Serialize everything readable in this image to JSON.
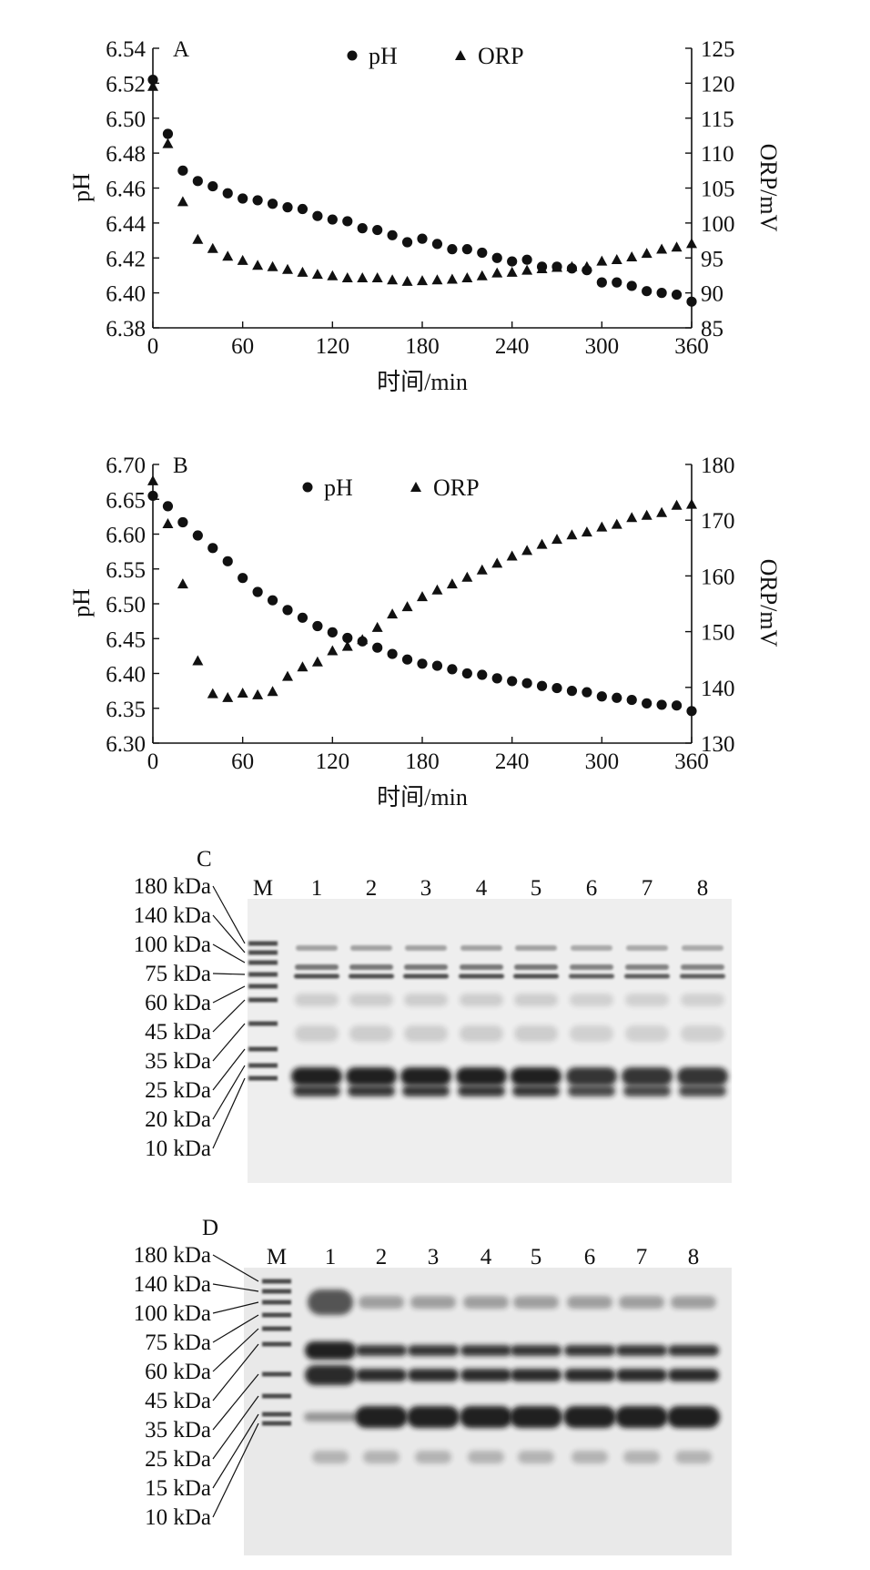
{
  "chart_data": [
    {
      "type": "scatter",
      "panel_label": "A",
      "xlabel": "时间/min",
      "ylabel_left": "pH",
      "ylabel_right": "ORP/mV",
      "x_ticks": [
        "0",
        "60",
        "120",
        "180",
        "240",
        "300",
        "360"
      ],
      "y_left_ticks": [
        "6.38",
        "6.40",
        "6.42",
        "6.44",
        "6.46",
        "6.48",
        "6.50",
        "6.52",
        "6.54"
      ],
      "y_right_ticks": [
        "85",
        "90",
        "95",
        "100",
        "105",
        "110",
        "115",
        "120",
        "125"
      ],
      "xlim": [
        0,
        360
      ],
      "ylim_left": [
        6.38,
        6.54
      ],
      "ylim_right": [
        85,
        125
      ],
      "grid": false,
      "legend_position": "top-center",
      "series": [
        {
          "name": "pH",
          "axis": "left",
          "marker": "circle",
          "x": [
            0,
            10,
            20,
            30,
            40,
            50,
            60,
            70,
            80,
            90,
            100,
            110,
            120,
            130,
            140,
            150,
            160,
            170,
            180,
            190,
            200,
            210,
            220,
            230,
            240,
            250,
            260,
            270,
            280,
            290,
            300,
            310,
            320,
            330,
            340,
            350,
            360
          ],
          "y": [
            6.522,
            6.491,
            6.47,
            6.464,
            6.461,
            6.457,
            6.454,
            6.453,
            6.451,
            6.449,
            6.448,
            6.444,
            6.442,
            6.441,
            6.437,
            6.436,
            6.433,
            6.429,
            6.431,
            6.428,
            6.425,
            6.425,
            6.423,
            6.42,
            6.418,
            6.419,
            6.415,
            6.415,
            6.414,
            6.413,
            6.406,
            6.406,
            6.404,
            6.401,
            6.4,
            6.399,
            6.395
          ]
        },
        {
          "name": "ORP",
          "axis": "right",
          "marker": "triangle",
          "x": [
            0,
            10,
            20,
            30,
            40,
            50,
            60,
            70,
            80,
            90,
            100,
            110,
            120,
            130,
            140,
            150,
            160,
            170,
            180,
            190,
            200,
            210,
            220,
            230,
            240,
            250,
            260,
            270,
            280,
            290,
            300,
            310,
            320,
            330,
            340,
            350,
            360
          ],
          "y": [
            119.5,
            111.3,
            103.0,
            97.6,
            96.3,
            95.2,
            94.6,
            93.9,
            93.7,
            93.3,
            92.9,
            92.6,
            92.4,
            92.1,
            92.1,
            92.1,
            91.8,
            91.6,
            91.7,
            91.8,
            91.9,
            92.1,
            92.4,
            92.8,
            92.9,
            93.2,
            93.4,
            93.6,
            93.7,
            93.7,
            94.5,
            94.7,
            95.1,
            95.6,
            96.2,
            96.5,
            97.0
          ]
        }
      ]
    },
    {
      "type": "scatter",
      "panel_label": "B",
      "xlabel": "时间/min",
      "ylabel_left": "pH",
      "ylabel_right": "ORP/mV",
      "x_ticks": [
        "0",
        "60",
        "120",
        "180",
        "240",
        "300",
        "360"
      ],
      "y_left_ticks": [
        "6.30",
        "6.35",
        "6.40",
        "6.45",
        "6.50",
        "6.55",
        "6.60",
        "6.65",
        "6.70"
      ],
      "y_right_ticks": [
        "130",
        "140",
        "150",
        "160",
        "170",
        "180"
      ],
      "xlim": [
        0,
        360
      ],
      "ylim_left": [
        6.3,
        6.7
      ],
      "ylim_right": [
        130,
        180
      ],
      "grid": false,
      "legend_position": "top-center",
      "series": [
        {
          "name": "pH",
          "axis": "left",
          "marker": "circle",
          "x": [
            0,
            10,
            20,
            30,
            40,
            50,
            60,
            70,
            80,
            90,
            100,
            110,
            120,
            130,
            140,
            150,
            160,
            170,
            180,
            190,
            200,
            210,
            220,
            230,
            240,
            250,
            260,
            270,
            280,
            290,
            300,
            310,
            320,
            330,
            340,
            350,
            360
          ],
          "y": [
            6.655,
            6.64,
            6.617,
            6.598,
            6.58,
            6.561,
            6.537,
            6.517,
            6.505,
            6.491,
            6.48,
            6.468,
            6.459,
            6.451,
            6.446,
            6.437,
            6.428,
            6.42,
            6.414,
            6.411,
            6.406,
            6.4,
            6.398,
            6.393,
            6.389,
            6.386,
            6.382,
            6.379,
            6.375,
            6.373,
            6.367,
            6.365,
            6.362,
            6.357,
            6.355,
            6.354,
            6.346
          ]
        },
        {
          "name": "ORP",
          "axis": "right",
          "marker": "triangle",
          "x": [
            0,
            10,
            20,
            30,
            40,
            50,
            60,
            70,
            80,
            90,
            100,
            110,
            120,
            130,
            140,
            150,
            160,
            170,
            180,
            190,
            200,
            210,
            220,
            230,
            240,
            250,
            260,
            270,
            280,
            290,
            300,
            310,
            320,
            330,
            340,
            350,
            360
          ],
          "y": [
            177.0,
            169.3,
            158.5,
            144.7,
            138.8,
            138.1,
            138.9,
            138.6,
            139.2,
            141.9,
            143.6,
            144.5,
            146.5,
            147.3,
            148.5,
            150.7,
            153.1,
            154.4,
            156.2,
            157.4,
            158.5,
            159.7,
            161.0,
            162.2,
            163.5,
            164.5,
            165.6,
            166.5,
            167.3,
            167.8,
            168.7,
            169.2,
            170.4,
            170.8,
            171.3,
            172.6,
            172.8
          ]
        }
      ]
    }
  ],
  "legend": {
    "ph_label": "pH",
    "orp_label": "ORP"
  },
  "gels": [
    {
      "panel_label": "C",
      "marker_label": "M",
      "lanes": [
        "1",
        "2",
        "3",
        "4",
        "5",
        "6",
        "7",
        "8"
      ],
      "ladder": [
        "180 kDa",
        "140 kDa",
        "100 kDa",
        "75 kDa",
        "60 kDa",
        "45 kDa",
        "35 kDa",
        "25 kDa",
        "20 kDa",
        "10 kDa"
      ]
    },
    {
      "panel_label": "D",
      "marker_label": "M",
      "lanes": [
        "1",
        "2",
        "3",
        "4",
        "5",
        "6",
        "7",
        "8"
      ],
      "ladder": [
        "180 kDa",
        "140 kDa",
        "100 kDa",
        "75 kDa",
        "60 kDa",
        "45 kDa",
        "35 kDa",
        "25 kDa",
        "15 kDa",
        "10 kDa"
      ]
    }
  ]
}
